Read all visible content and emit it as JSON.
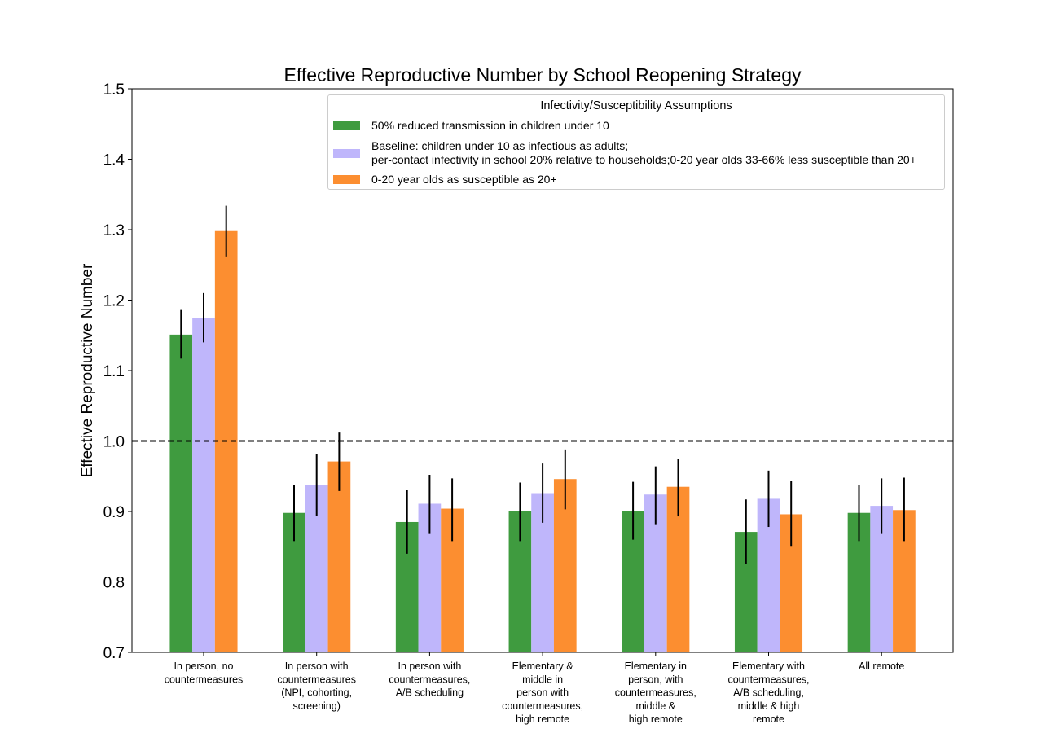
{
  "chart_data": {
    "type": "bar",
    "title": "Effective Reproductive Number by School Reopening Strategy",
    "xlabel": "",
    "ylabel": "Effective Reproductive Number",
    "ylim": [
      0.7,
      1.5
    ],
    "yticks": [
      "0.7",
      "0.8",
      "0.9",
      "1.0",
      "1.1",
      "1.2",
      "1.3",
      "1.4",
      "1.5"
    ],
    "reference_line": {
      "y": 1.0,
      "style": "dashed",
      "color": "#000000"
    },
    "categories": [
      [
        "In person, no",
        "countermeasures"
      ],
      [
        "In person with",
        "countermeasures",
        "(NPI, cohorting,",
        "screening)"
      ],
      [
        "In person with",
        "countermeasures,",
        "A/B scheduling"
      ],
      [
        "Elementary &",
        "middle in",
        "person with",
        "countermeasures,",
        "high remote"
      ],
      [
        "Elementary in",
        "person, with",
        "countermeasures,",
        "middle &",
        "high remote"
      ],
      [
        "Elementary with",
        "countermeasures,",
        "A/B scheduling,",
        "middle & high",
        "remote"
      ],
      [
        "All remote"
      ]
    ],
    "legend": {
      "title": "Infectivity/Susceptibility Assumptions",
      "placement": "top-right"
    },
    "series": [
      {
        "name": "50% reduced transmission in children under 10",
        "name_lines": [
          "50% reduced transmission in children under 10"
        ],
        "color": "#3f9b3f",
        "values": [
          1.151,
          0.898,
          0.885,
          0.9,
          0.901,
          0.871,
          0.898
        ],
        "err_low": [
          1.117,
          0.858,
          0.84,
          0.858,
          0.86,
          0.825,
          0.858
        ],
        "err_high": [
          1.186,
          0.937,
          0.93,
          0.941,
          0.942,
          0.917,
          0.938
        ]
      },
      {
        "name": "Baseline: children under 10 as infectious as adults; per-contact infectivity in school 20% relative to households;0-20 year olds 33-66% less susceptible than 20+",
        "name_lines": [
          "Baseline: children under 10 as infectious as adults;",
          "per-contact infectivity in school 20% relative to households;0-20 year olds 33-66% less susceptible than 20+"
        ],
        "color": "#bfb6fb",
        "values": [
          1.175,
          0.937,
          0.911,
          0.926,
          0.924,
          0.918,
          0.908
        ],
        "err_low": [
          1.14,
          0.893,
          0.868,
          0.884,
          0.882,
          0.878,
          0.868
        ],
        "err_high": [
          1.21,
          0.981,
          0.952,
          0.968,
          0.964,
          0.958,
          0.947
        ]
      },
      {
        "name": "0-20 year olds as susceptible as 20+",
        "name_lines": [
          "0-20 year olds as susceptible as 20+"
        ],
        "color": "#fc8e30",
        "values": [
          1.298,
          0.971,
          0.904,
          0.946,
          0.935,
          0.896,
          0.902
        ],
        "err_low": [
          1.262,
          0.929,
          0.858,
          0.903,
          0.893,
          0.85,
          0.858
        ],
        "err_high": [
          1.334,
          1.012,
          0.947,
          0.988,
          0.974,
          0.943,
          0.948
        ]
      }
    ]
  }
}
